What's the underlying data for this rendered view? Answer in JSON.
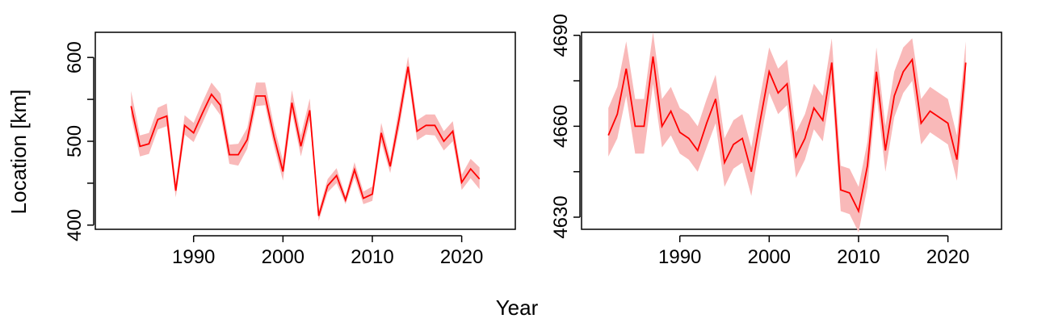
{
  "figure": {
    "xlabel": "Year",
    "ylabel": "Location [km]"
  },
  "chart_data": [
    {
      "type": "line",
      "title": "",
      "xlabel": "Year",
      "ylabel": "Location [km]",
      "xlim": [
        1979,
        2026
      ],
      "ylim": [
        395,
        630
      ],
      "xticks": [
        1990,
        2000,
        2010,
        2020
      ],
      "yticks": [
        400,
        500,
        600
      ],
      "y_minor_ticks": [
        450,
        550
      ],
      "grid": false,
      "line_color": "#ff0000",
      "band_color": "#f9b9b9",
      "series": [
        {
          "x": [
            1983,
            1984,
            1985,
            1986,
            1987,
            1988,
            1989,
            1990,
            1991,
            1992,
            1993,
            1994,
            1995,
            1996,
            1997,
            1998,
            1999,
            2000,
            2001,
            2002,
            2003,
            2004,
            2005,
            2006,
            2007,
            2008,
            2009,
            2010,
            2011,
            2012,
            2013,
            2014,
            2015,
            2016,
            2017,
            2018,
            2019,
            2020,
            2021,
            2022
          ],
          "y": [
            542,
            494,
            497,
            526,
            530,
            441,
            519,
            510,
            534,
            556,
            543,
            484,
            484,
            502,
            554,
            554,
            505,
            464,
            546,
            494,
            537,
            411,
            447,
            459,
            430,
            466,
            432,
            437,
            510,
            470,
            527,
            589,
            512,
            519,
            519,
            500,
            512,
            451,
            467,
            455
          ],
          "lower": [
            530,
            482,
            485,
            514,
            518,
            433,
            508,
            499,
            522,
            546,
            531,
            473,
            471,
            491,
            542,
            543,
            494,
            453,
            535,
            482,
            525,
            405,
            439,
            450,
            425,
            457,
            425,
            429,
            499,
            462,
            515,
            578,
            501,
            508,
            507,
            489,
            500,
            442,
            456,
            443
          ],
          "upper": [
            560,
            507,
            510,
            540,
            545,
            451,
            531,
            522,
            547,
            570,
            557,
            496,
            497,
            516,
            570,
            570,
            518,
            477,
            561,
            507,
            551,
            417,
            455,
            468,
            435,
            475,
            440,
            446,
            522,
            479,
            540,
            601,
            525,
            532,
            532,
            512,
            524,
            460,
            479,
            469
          ]
        }
      ]
    },
    {
      "type": "line",
      "title": "",
      "xlabel": "Year",
      "ylabel": "",
      "xlim": [
        1979,
        2026
      ],
      "ylim": [
        4626,
        4691
      ],
      "xticks": [
        1990,
        2000,
        2010,
        2020
      ],
      "yticks": [
        4630,
        4660,
        4690
      ],
      "y_minor_ticks": [
        4645,
        4675
      ],
      "grid": false,
      "line_color": "#ff0000",
      "band_color": "#f9b9b9",
      "series": [
        {
          "x": [
            1982,
            1983,
            1984,
            1985,
            1986,
            1987,
            1988,
            1989,
            1990,
            1991,
            1992,
            1993,
            1994,
            1995,
            1996,
            1997,
            1998,
            1999,
            2000,
            2001,
            2002,
            2003,
            2004,
            2005,
            2006,
            2007,
            2008,
            2009,
            2010,
            2011,
            2012,
            2013,
            2014,
            2015,
            2016,
            2017,
            2018,
            2019,
            2020,
            2021,
            2022
          ],
          "y": [
            4657,
            4664,
            4679,
            4660,
            4660,
            4683,
            4660,
            4665,
            4658,
            4656,
            4652,
            4661,
            4669,
            4648,
            4654,
            4656,
            4645,
            4662,
            4678,
            4671,
            4674,
            4650,
            4656,
            4666,
            4662,
            4681,
            4639,
            4638,
            4632,
            4647,
            4678,
            4652,
            4670,
            4678,
            4682,
            4661,
            4665,
            4663,
            4661,
            4649,
            4681
          ],
          "lower": [
            4650,
            4656,
            4670,
            4651,
            4651,
            4674,
            4653,
            4657,
            4651,
            4649,
            4645,
            4653,
            4661,
            4640,
            4646,
            4648,
            4637,
            4655,
            4671,
            4664,
            4667,
            4643,
            4649,
            4659,
            4655,
            4674,
            4632,
            4631,
            4625,
            4640,
            4671,
            4645,
            4663,
            4671,
            4675,
            4654,
            4658,
            4656,
            4654,
            4642,
            4674
          ],
          "upper": [
            4666,
            4673,
            4688,
            4669,
            4669,
            4691,
            4669,
            4673,
            4666,
            4664,
            4660,
            4669,
            4677,
            4656,
            4662,
            4664,
            4653,
            4670,
            4686,
            4679,
            4682,
            4658,
            4664,
            4674,
            4670,
            4689,
            4647,
            4646,
            4640,
            4655,
            4686,
            4660,
            4678,
            4686,
            4689,
            4669,
            4673,
            4671,
            4669,
            4657,
            4688
          ]
        }
      ]
    }
  ]
}
